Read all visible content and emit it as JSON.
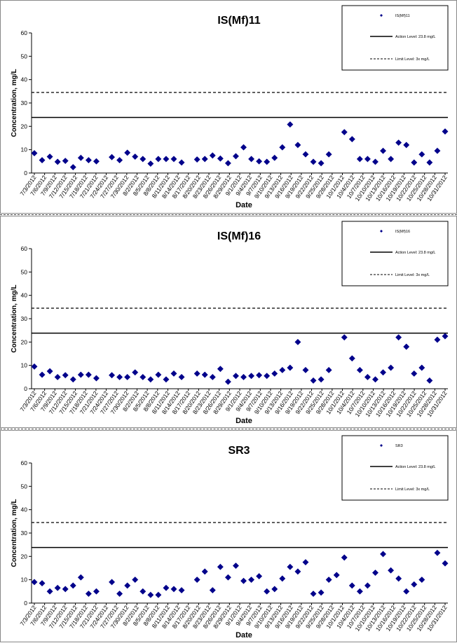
{
  "chart_data": [
    {
      "type": "scatter",
      "title": "IS(Mf)11",
      "xlabel": "Date",
      "ylabel": "Concentration, mg/L",
      "ylim": [
        0,
        60
      ],
      "yticks": [
        0,
        10,
        20,
        30,
        40,
        50,
        60
      ],
      "grid": false,
      "legend_position": "top-right",
      "marker_color": "#00008B",
      "x_tick_labels": [
        "7/3/2012",
        "7/6/2012",
        "7/9/2012",
        "7/12/2012",
        "7/15/2012",
        "7/18/2012",
        "7/21/2012",
        "7/24/2012",
        "7/27/2012",
        "7/30/2012",
        "8/2/2012",
        "8/5/2012",
        "8/8/2012",
        "8/11/2012",
        "8/14/2012",
        "8/17/2012",
        "8/20/2012",
        "8/23/2012",
        "8/26/2012",
        "8/29/2012",
        "9/1/2012",
        "9/4/2012",
        "9/7/2012",
        "9/10/2012",
        "9/13/2012",
        "9/16/2012",
        "9/19/2012",
        "9/22/2012",
        "9/25/2012",
        "9/28/2012",
        "10/1/2012",
        "10/4/2012",
        "10/7/2012",
        "10/10/2012",
        "10/13/2012",
        "10/16/2012",
        "10/19/2012",
        "10/22/2012",
        "10/25/2012",
        "10/28/2012",
        "10/31/2012"
      ],
      "series": [
        {
          "name": "IS(Mf)11",
          "values": [
            [
              0,
              8.5
            ],
            [
              1,
              5.5
            ],
            [
              2,
              7
            ],
            [
              3,
              4.8
            ],
            [
              4,
              5.2
            ],
            [
              5,
              2.5
            ],
            [
              6,
              6.5
            ],
            [
              7,
              5.5
            ],
            [
              8,
              5
            ],
            [
              10,
              6.8
            ],
            [
              11,
              5.5
            ],
            [
              12,
              8.7
            ],
            [
              13,
              7
            ],
            [
              14,
              6
            ],
            [
              15,
              4
            ],
            [
              16,
              6
            ],
            [
              17,
              6
            ],
            [
              18,
              6
            ],
            [
              19,
              4.5
            ],
            [
              21,
              5.8
            ],
            [
              22,
              6
            ],
            [
              23,
              7.5
            ],
            [
              24,
              6.2
            ],
            [
              25,
              4.2
            ],
            [
              26,
              7.2
            ],
            [
              27,
              11
            ],
            [
              28,
              6
            ],
            [
              29,
              5
            ],
            [
              30,
              4.8
            ],
            [
              31,
              6.5
            ],
            [
              32,
              11
            ],
            [
              33,
              20.8
            ],
            [
              34,
              12
            ],
            [
              35,
              8
            ],
            [
              36,
              4.8
            ],
            [
              37,
              4.2
            ],
            [
              38,
              8
            ],
            [
              40,
              17.5
            ],
            [
              41,
              14.5
            ],
            [
              42,
              6
            ],
            [
              43,
              6
            ],
            [
              44,
              4.8
            ],
            [
              45,
              9.5
            ],
            [
              46,
              6
            ],
            [
              47,
              13
            ],
            [
              48,
              12
            ],
            [
              49,
              4.5
            ],
            [
              50,
              8
            ],
            [
              51,
              4.5
            ],
            [
              52,
              9.5
            ],
            [
              53,
              17.8
            ]
          ]
        },
        {
          "name": "Action Level: 23.8 mg/L",
          "value": 23.8,
          "style": "solid"
        },
        {
          "name": "Limit Level: 3x mg/L",
          "value": 34.5,
          "style": "dashed"
        }
      ]
    },
    {
      "type": "scatter",
      "title": "IS(Mf)16",
      "xlabel": "Date",
      "ylabel": "Concentration, mg/L",
      "ylim": [
        0,
        60
      ],
      "yticks": [
        0,
        10,
        20,
        30,
        40,
        50,
        60
      ],
      "grid": false,
      "legend_position": "top-right",
      "marker_color": "#00008B",
      "x_tick_labels": [
        "7/3/2012",
        "7/6/2012",
        "7/9/2012",
        "7/12/2012",
        "7/15/2012",
        "7/18/2012",
        "7/21/2012",
        "7/24/2012",
        "7/27/2012",
        "7/30/2012",
        "8/2/2012",
        "8/5/2012",
        "8/8/2012",
        "8/11/2012",
        "8/14/2012",
        "8/17/2012",
        "8/20/2012",
        "8/23/2012",
        "8/26/2012",
        "8/29/2012",
        "9/1/2012",
        "9/4/2012",
        "9/7/2012",
        "9/10/2012",
        "9/13/2012",
        "9/16/2012",
        "9/19/2012",
        "9/22/2012",
        "9/25/2012",
        "9/28/2012",
        "10/1/2012",
        "10/4/2012",
        "10/7/2012",
        "10/10/2012",
        "10/13/2012",
        "10/16/2012",
        "10/19/2012",
        "10/22/2012",
        "10/25/2012",
        "10/28/2012",
        "10/31/2012"
      ],
      "series": [
        {
          "name": "IS(Mf)16",
          "values": [
            [
              0,
              9.5
            ],
            [
              1,
              6
            ],
            [
              2,
              7.5
            ],
            [
              3,
              5
            ],
            [
              4,
              5.8
            ],
            [
              5,
              4
            ],
            [
              6,
              6
            ],
            [
              7,
              6
            ],
            [
              8,
              4.5
            ],
            [
              10,
              5.8
            ],
            [
              11,
              5
            ],
            [
              12,
              5
            ],
            [
              13,
              7
            ],
            [
              14,
              5
            ],
            [
              15,
              4
            ],
            [
              16,
              6
            ],
            [
              17,
              4
            ],
            [
              18,
              6.5
            ],
            [
              19,
              5
            ],
            [
              21,
              6.5
            ],
            [
              22,
              6
            ],
            [
              23,
              5
            ],
            [
              24,
              8.5
            ],
            [
              25,
              3
            ],
            [
              26,
              5.5
            ],
            [
              27,
              5
            ],
            [
              28,
              5.5
            ],
            [
              29,
              5.8
            ],
            [
              30,
              5.5
            ],
            [
              31,
              6.5
            ],
            [
              32,
              8
            ],
            [
              33,
              9
            ],
            [
              34,
              20
            ],
            [
              35,
              8
            ],
            [
              36,
              3.5
            ],
            [
              37,
              4
            ],
            [
              38,
              8
            ],
            [
              40,
              22
            ],
            [
              41,
              13
            ],
            [
              42,
              8
            ],
            [
              43,
              5
            ],
            [
              44,
              4
            ],
            [
              45,
              7
            ],
            [
              46,
              9
            ],
            [
              47,
              22
            ],
            [
              48,
              18
            ],
            [
              49,
              6.5
            ],
            [
              50,
              9
            ],
            [
              51,
              3.5
            ],
            [
              52,
              21
            ],
            [
              53,
              22.5
            ]
          ]
        },
        {
          "name": "Action Level: 23.8 mg/L",
          "value": 23.8,
          "style": "solid"
        },
        {
          "name": "Limit Level: 3x mg/L",
          "value": 34.5,
          "style": "dashed"
        }
      ]
    },
    {
      "type": "scatter",
      "title": "SR3",
      "xlabel": "Date",
      "ylabel": "Concentration, mg/L",
      "ylim": [
        0,
        60
      ],
      "yticks": [
        0,
        10,
        20,
        30,
        40,
        50,
        60
      ],
      "grid": false,
      "legend_position": "top-right",
      "marker_color": "#00008B",
      "x_tick_labels": [
        "7/3/2012",
        "7/6/2012",
        "7/9/2012",
        "7/12/2012",
        "7/15/2012",
        "7/18/2012",
        "7/21/2012",
        "7/24/2012",
        "7/27/2012",
        "7/30/2012",
        "8/2/2012",
        "8/5/2012",
        "8/8/2012",
        "8/11/2012",
        "8/14/2012",
        "8/17/2012",
        "8/20/2012",
        "8/23/2012",
        "8/26/2012",
        "8/29/2012",
        "9/1/2012",
        "9/4/2012",
        "9/7/2012",
        "9/10/2012",
        "9/13/2012",
        "9/16/2012",
        "9/19/2012",
        "9/22/2012",
        "9/25/2012",
        "9/28/2012",
        "10/1/2012",
        "10/4/2012",
        "10/7/2012",
        "10/10/2012",
        "10/13/2012",
        "10/16/2012",
        "10/19/2012",
        "10/22/2012",
        "10/25/2012",
        "10/28/2012",
        "10/31/2012"
      ],
      "series": [
        {
          "name": "SR3",
          "values": [
            [
              0,
              9
            ],
            [
              1,
              8.5
            ],
            [
              2,
              5
            ],
            [
              3,
              6.5
            ],
            [
              4,
              6
            ],
            [
              5,
              7.5
            ],
            [
              6,
              11
            ],
            [
              7,
              4
            ],
            [
              8,
              5
            ],
            [
              10,
              9
            ],
            [
              11,
              4
            ],
            [
              12,
              7.5
            ],
            [
              13,
              10
            ],
            [
              14,
              5
            ],
            [
              15,
              3.5
            ],
            [
              16,
              3.5
            ],
            [
              17,
              6.5
            ],
            [
              18,
              6
            ],
            [
              19,
              5.5
            ],
            [
              21,
              10
            ],
            [
              22,
              13.5
            ],
            [
              23,
              5.5
            ],
            [
              24,
              15.5
            ],
            [
              25,
              11
            ],
            [
              26,
              16
            ],
            [
              27,
              9.5
            ],
            [
              28,
              10
            ],
            [
              29,
              11.5
            ],
            [
              30,
              5
            ],
            [
              31,
              6
            ],
            [
              32,
              10.5
            ],
            [
              33,
              15.5
            ],
            [
              34,
              13.5
            ],
            [
              35,
              17.5
            ],
            [
              36,
              4
            ],
            [
              37,
              4.5
            ],
            [
              38,
              10
            ],
            [
              39,
              12
            ],
            [
              40,
              19.5
            ],
            [
              41,
              7.5
            ],
            [
              42,
              5
            ],
            [
              43,
              7.5
            ],
            [
              44,
              13
            ],
            [
              45,
              21
            ],
            [
              46,
              14
            ],
            [
              47,
              10.5
            ],
            [
              48,
              5
            ],
            [
              49,
              8
            ],
            [
              50,
              10
            ],
            [
              52,
              21.5
            ],
            [
              53,
              17
            ]
          ]
        },
        {
          "name": "Action Level: 23.8 mg/L",
          "value": 23.8,
          "style": "solid"
        },
        {
          "name": "Limit Level: 3x mg/L",
          "value": 34.5,
          "style": "dashed"
        }
      ]
    }
  ]
}
